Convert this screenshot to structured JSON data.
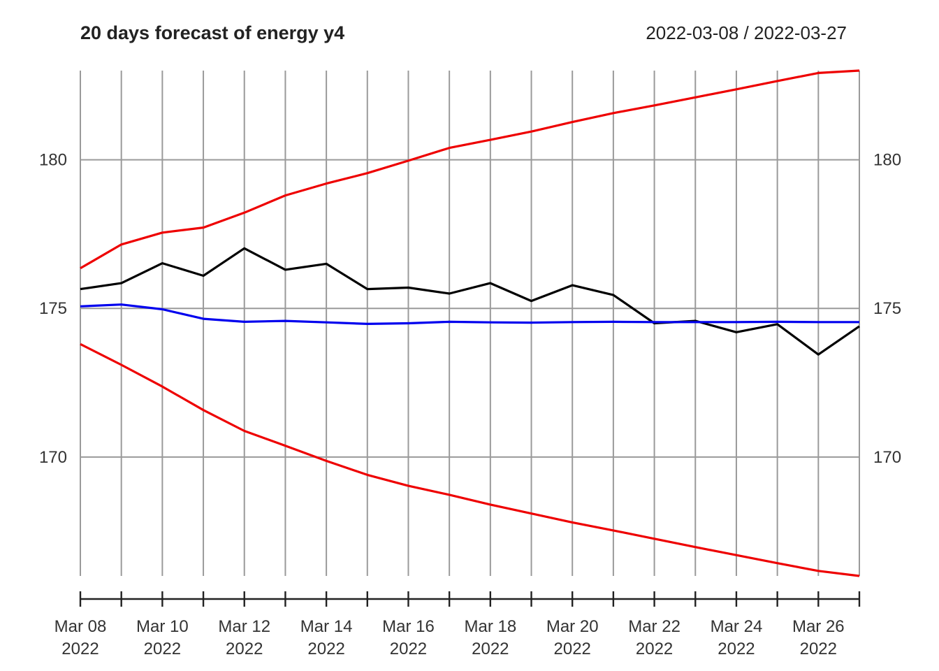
{
  "chart_data": {
    "type": "line",
    "title": "20 days forecast of energy y4",
    "date_range": "2022-03-08 / 2022-03-27",
    "x": [
      "2022-03-08",
      "2022-03-09",
      "2022-03-10",
      "2022-03-11",
      "2022-03-12",
      "2022-03-13",
      "2022-03-14",
      "2022-03-15",
      "2022-03-16",
      "2022-03-17",
      "2022-03-18",
      "2022-03-19",
      "2022-03-20",
      "2022-03-21",
      "2022-03-22",
      "2022-03-23",
      "2022-03-24",
      "2022-03-25",
      "2022-03-26",
      "2022-03-27"
    ],
    "x_tick_labels": [
      {
        "date": "2022-03-08",
        "line1": "Mar 08",
        "line2": "2022"
      },
      {
        "date": "2022-03-10",
        "line1": "Mar 10",
        "line2": "2022"
      },
      {
        "date": "2022-03-12",
        "line1": "Mar 12",
        "line2": "2022"
      },
      {
        "date": "2022-03-14",
        "line1": "Mar 14",
        "line2": "2022"
      },
      {
        "date": "2022-03-16",
        "line1": "Mar 16",
        "line2": "2022"
      },
      {
        "date": "2022-03-18",
        "line1": "Mar 18",
        "line2": "2022"
      },
      {
        "date": "2022-03-20",
        "line1": "Mar 20",
        "line2": "2022"
      },
      {
        "date": "2022-03-22",
        "line1": "Mar 22",
        "line2": "2022"
      },
      {
        "date": "2022-03-24",
        "line1": "Mar 24",
        "line2": "2022"
      },
      {
        "date": "2022-03-26",
        "line1": "Mar 26",
        "line2": "2022"
      }
    ],
    "y_ticks": [
      170,
      175,
      180
    ],
    "ylim": [
      166,
      183
    ],
    "grid": true,
    "series": [
      {
        "color": "#ee0000",
        "values": [
          176.35,
          177.15,
          177.55,
          177.72,
          178.22,
          178.8,
          179.2,
          179.55,
          179.97,
          180.4,
          180.67,
          180.95,
          181.27,
          181.57,
          181.83,
          182.1,
          182.37,
          182.65,
          182.92,
          183.0
        ]
      },
      {
        "color": "#000000",
        "values": [
          175.65,
          175.85,
          176.52,
          176.1,
          177.02,
          176.3,
          176.5,
          175.65,
          175.7,
          175.5,
          175.85,
          175.25,
          175.78,
          175.45,
          174.5,
          174.58,
          174.2,
          174.47,
          173.45,
          174.4
        ]
      },
      {
        "color": "#0000ee",
        "values": [
          175.07,
          175.13,
          174.97,
          174.65,
          174.55,
          174.58,
          174.53,
          174.48,
          174.5,
          174.55,
          174.53,
          174.52,
          174.54,
          174.55,
          174.54,
          174.54,
          174.54,
          174.55,
          174.54,
          174.54
        ]
      },
      {
        "color": "#ee0000",
        "values": [
          173.8,
          173.1,
          172.37,
          171.58,
          170.88,
          170.38,
          169.87,
          169.4,
          169.03,
          168.73,
          168.4,
          168.1,
          167.8,
          167.53,
          167.25,
          166.97,
          166.7,
          166.43,
          166.17,
          166.0
        ]
      }
    ]
  }
}
